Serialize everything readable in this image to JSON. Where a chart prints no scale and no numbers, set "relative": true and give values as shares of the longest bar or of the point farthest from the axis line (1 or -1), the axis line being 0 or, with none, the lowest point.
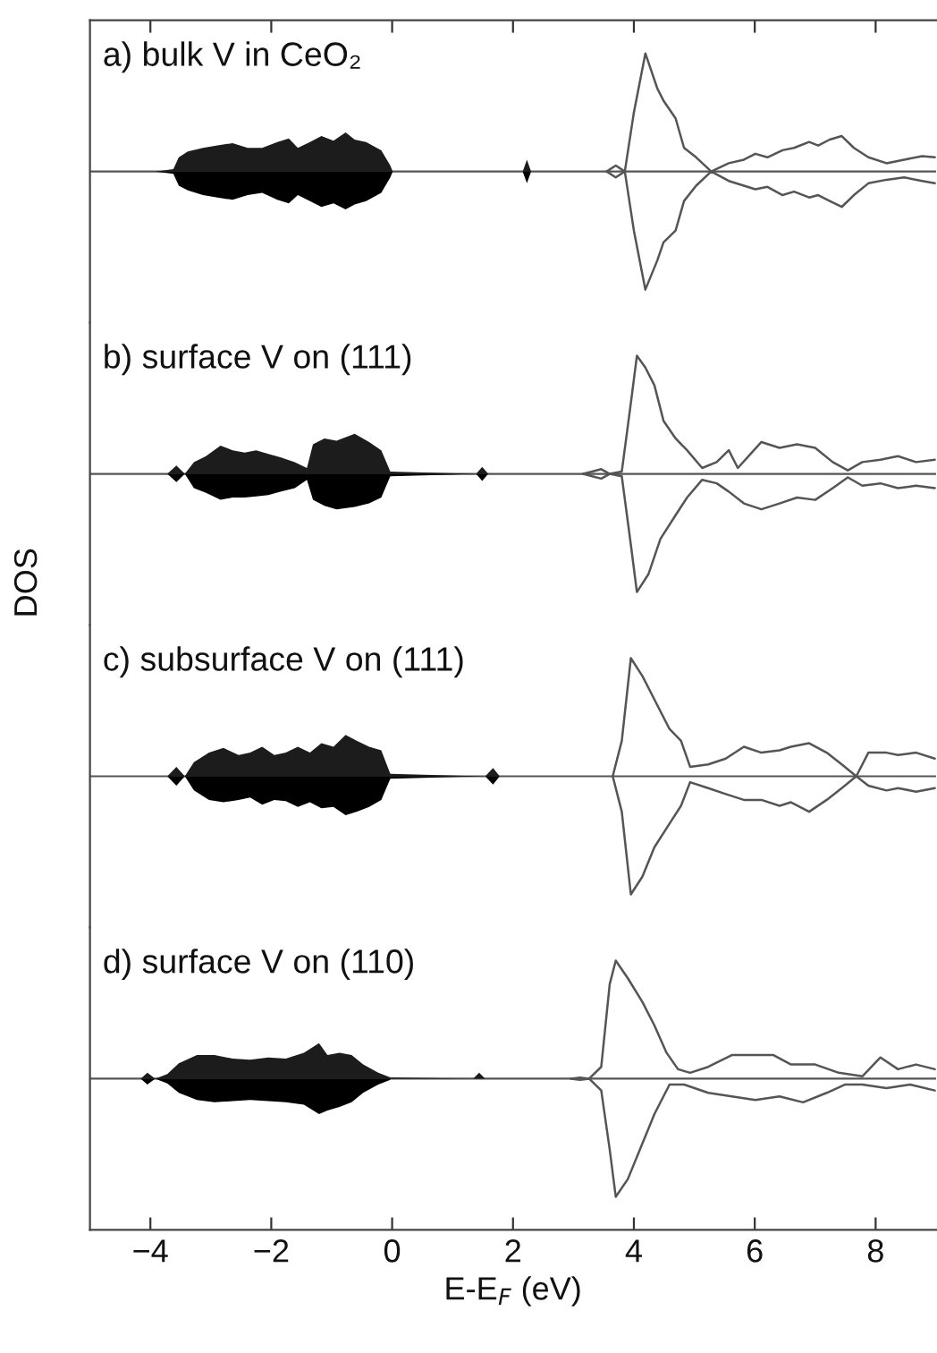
{
  "chart_data": [
    {
      "type": "line",
      "title": "a) bulk V in CeO₂",
      "relative": true,
      "xlim": [
        -5,
        9
      ],
      "tick_labels": false,
      "xticks": [
        {
          "value": -4,
          "label": null
        },
        {
          "value": -2,
          "label": null
        },
        {
          "value": 0,
          "label": null
        },
        {
          "value": 2,
          "label": null
        },
        {
          "value": 4,
          "label": null
        },
        {
          "value": 6,
          "label": null
        },
        {
          "value": 8,
          "label": null
        }
      ],
      "series": [
        {
          "type": "area",
          "color": "#1c1c1c",
          "x": [
            -3.92,
            -3.62,
            -3.53,
            -3.38,
            -3.13,
            -2.89,
            -2.64,
            -2.39,
            -2.15,
            -1.9,
            -1.71,
            -1.56,
            -1.36,
            -1.17,
            -0.97,
            -0.77,
            -0.62,
            -0.43,
            -0.18,
            -0.03,
            0.01,
            2.16,
            2.23,
            2.3
          ],
          "values": [
            0,
            0.02,
            0.12,
            0.17,
            0.2,
            0.22,
            0.24,
            0.2,
            0.2,
            0.25,
            0.28,
            0.2,
            0.25,
            0.3,
            0.26,
            0.33,
            0.27,
            0.25,
            0.18,
            0.05,
            0,
            0,
            0.1,
            0
          ]
        },
        {
          "type": "area",
          "color": "#000000",
          "x": [
            -3.92,
            -3.62,
            -3.53,
            -3.38,
            -3.13,
            -2.89,
            -2.64,
            -2.39,
            -2.15,
            -1.9,
            -1.71,
            -1.56,
            -1.36,
            -1.17,
            -0.97,
            -0.77,
            -0.62,
            -0.43,
            -0.18,
            -0.03,
            0.01,
            2.16,
            2.23,
            2.3
          ],
          "values": [
            0,
            -0.02,
            -0.12,
            -0.16,
            -0.2,
            -0.22,
            -0.24,
            -0.2,
            -0.18,
            -0.24,
            -0.27,
            -0.2,
            -0.25,
            -0.3,
            -0.27,
            -0.32,
            -0.28,
            -0.25,
            -0.18,
            -0.05,
            0,
            0,
            -0.1,
            0
          ]
        },
        {
          "color": "#555555",
          "x": [
            3.55,
            3.7,
            3.85,
            4.0,
            4.19,
            4.39,
            4.49,
            4.69,
            4.83,
            5.03,
            5.28,
            5.57,
            5.82,
            6.01,
            6.21,
            6.46,
            6.65,
            6.9,
            7.05,
            7.24,
            7.44,
            7.64,
            7.88,
            8.18,
            8.47,
            8.77,
            8.98
          ],
          "values": [
            0,
            0.05,
            0,
            0.5,
            1.0,
            0.7,
            0.6,
            0.45,
            0.2,
            0.12,
            0,
            0.07,
            0.1,
            0.15,
            0.12,
            0.18,
            0.2,
            0.25,
            0.22,
            0.27,
            0.3,
            0.2,
            0.12,
            0.07,
            0.1,
            0.13,
            0.12
          ]
        },
        {
          "color": "#555555",
          "x": [
            3.55,
            3.7,
            3.85,
            4.0,
            4.19,
            4.39,
            4.49,
            4.69,
            4.83,
            5.03,
            5.28,
            5.57,
            5.82,
            6.01,
            6.21,
            6.46,
            6.65,
            6.9,
            7.05,
            7.24,
            7.44,
            7.64,
            7.88,
            8.18,
            8.47,
            8.77,
            8.98
          ],
          "values": [
            0,
            -0.05,
            0,
            -0.5,
            -1.0,
            -0.75,
            -0.6,
            -0.5,
            -0.25,
            -0.12,
            0,
            -0.08,
            -0.12,
            -0.15,
            -0.13,
            -0.2,
            -0.17,
            -0.22,
            -0.2,
            -0.25,
            -0.3,
            -0.2,
            -0.1,
            -0.07,
            -0.05,
            -0.08,
            -0.1
          ]
        }
      ]
    },
    {
      "type": "line",
      "title": "b) surface V on (111)",
      "ylabel": "DOS",
      "relative": true,
      "xlim": [
        -5,
        9
      ],
      "tick_labels": false,
      "series": [
        {
          "type": "area",
          "color": "#1c1c1c",
          "x": [
            -3.72,
            -3.57,
            -3.43,
            -3.28,
            -3.08,
            -2.84,
            -2.64,
            -2.44,
            -2.25,
            -2.05,
            -1.85,
            -1.61,
            -1.41,
            -1.31,
            -1.12,
            -0.92,
            -0.62,
            -0.38,
            -0.18,
            -0.03,
            1.39,
            1.49,
            1.59
          ],
          "values": [
            0,
            0.07,
            0,
            0.1,
            0.15,
            0.24,
            0.2,
            0.18,
            0.2,
            0.17,
            0.14,
            0.1,
            0.05,
            0.25,
            0.3,
            0.28,
            0.34,
            0.27,
            0.2,
            0.02,
            0,
            0.06,
            0
          ]
        },
        {
          "type": "area",
          "color": "#000000",
          "x": [
            -3.72,
            -3.57,
            -3.43,
            -3.28,
            -3.08,
            -2.84,
            -2.64,
            -2.44,
            -2.25,
            -2.05,
            -1.85,
            -1.61,
            -1.41,
            -1.31,
            -1.12,
            -0.92,
            -0.62,
            -0.38,
            -0.18,
            -0.03,
            1.39,
            1.49,
            1.59
          ],
          "values": [
            0,
            -0.07,
            0,
            -0.12,
            -0.16,
            -0.22,
            -0.2,
            -0.2,
            -0.19,
            -0.18,
            -0.15,
            -0.12,
            -0.05,
            -0.22,
            -0.27,
            -0.3,
            -0.28,
            -0.25,
            -0.2,
            -0.02,
            0,
            -0.06,
            0
          ]
        },
        {
          "color": "#555555",
          "x": [
            3.16,
            3.31,
            3.46,
            3.6,
            3.8,
            3.95,
            4.05,
            4.19,
            4.34,
            4.49,
            4.69,
            4.88,
            5.13,
            5.37,
            5.57,
            5.72,
            6.11,
            6.41,
            6.7,
            7.0,
            7.29,
            7.54,
            7.78,
            8.08,
            8.37,
            8.67,
            8.98
          ],
          "values": [
            0,
            0.02,
            0.04,
            0,
            0.02,
            0.6,
            1.0,
            0.9,
            0.75,
            0.45,
            0.3,
            0.2,
            0.05,
            0.1,
            0.2,
            0.05,
            0.27,
            0.22,
            0.25,
            0.22,
            0.1,
            0.03,
            0.1,
            0.12,
            0.15,
            0.1,
            0.12
          ]
        },
        {
          "color": "#555555",
          "x": [
            3.16,
            3.31,
            3.46,
            3.6,
            3.8,
            3.95,
            4.05,
            4.24,
            4.44,
            4.69,
            4.88,
            5.13,
            5.37,
            5.57,
            5.82,
            6.11,
            6.41,
            6.7,
            7.0,
            7.29,
            7.54,
            7.78,
            8.08,
            8.37,
            8.67,
            8.98
          ],
          "values": [
            0,
            -0.02,
            -0.04,
            0,
            -0.02,
            -0.6,
            -1.0,
            -0.85,
            -0.55,
            -0.35,
            -0.2,
            -0.05,
            -0.08,
            -0.15,
            -0.25,
            -0.3,
            -0.25,
            -0.2,
            -0.22,
            -0.12,
            -0.03,
            -0.1,
            -0.08,
            -0.12,
            -0.1,
            -0.12
          ]
        }
      ]
    },
    {
      "type": "line",
      "title": "c) subsurface V on (111)",
      "relative": true,
      "xlim": [
        -5,
        9
      ],
      "tick_labels": false,
      "series": [
        {
          "type": "area",
          "color": "#1c1c1c",
          "x": [
            -3.72,
            -3.57,
            -3.43,
            -3.28,
            -3.03,
            -2.79,
            -2.54,
            -2.35,
            -2.15,
            -1.95,
            -1.76,
            -1.56,
            -1.36,
            -1.17,
            -0.97,
            -0.77,
            -0.58,
            -0.38,
            -0.18,
            -0.03,
            1.54,
            1.67,
            1.78
          ],
          "values": [
            0,
            0.08,
            0,
            0.12,
            0.2,
            0.24,
            0.18,
            0.2,
            0.25,
            0.18,
            0.2,
            0.25,
            0.2,
            0.28,
            0.25,
            0.35,
            0.3,
            0.25,
            0.22,
            0.02,
            0,
            0.07,
            0
          ]
        },
        {
          "type": "area",
          "color": "#000000",
          "x": [
            -3.72,
            -3.57,
            -3.43,
            -3.28,
            -3.03,
            -2.79,
            -2.54,
            -2.35,
            -2.15,
            -1.95,
            -1.76,
            -1.56,
            -1.36,
            -1.17,
            -0.97,
            -0.77,
            -0.58,
            -0.38,
            -0.18,
            -0.03,
            1.54,
            1.67,
            1.78
          ],
          "values": [
            0,
            -0.08,
            0,
            -0.12,
            -0.2,
            -0.22,
            -0.2,
            -0.18,
            -0.24,
            -0.2,
            -0.21,
            -0.26,
            -0.22,
            -0.27,
            -0.26,
            -0.33,
            -0.3,
            -0.26,
            -0.2,
            -0.02,
            0,
            -0.07,
            0
          ]
        },
        {
          "color": "#555555",
          "x": [
            3.65,
            3.8,
            3.95,
            4.14,
            4.34,
            4.59,
            4.78,
            4.93,
            5.23,
            5.52,
            5.82,
            6.11,
            6.41,
            6.6,
            6.9,
            7.19,
            7.44,
            7.68,
            7.88,
            8.18,
            8.37,
            8.67,
            8.98
          ],
          "values": [
            0,
            0.3,
            1.0,
            0.85,
            0.65,
            0.4,
            0.3,
            0.08,
            0.1,
            0.15,
            0.25,
            0.2,
            0.22,
            0.25,
            0.28,
            0.2,
            0.1,
            0,
            0.2,
            0.2,
            0.18,
            0.2,
            0.15
          ]
        },
        {
          "color": "#555555",
          "x": [
            3.65,
            3.8,
            3.95,
            4.14,
            4.34,
            4.59,
            4.78,
            4.93,
            5.23,
            5.52,
            5.82,
            6.11,
            6.41,
            6.6,
            6.9,
            7.19,
            7.44,
            7.68,
            7.88,
            8.18,
            8.37,
            8.67,
            8.98
          ],
          "values": [
            0,
            -0.3,
            -1.0,
            -0.85,
            -0.6,
            -0.4,
            -0.25,
            -0.05,
            -0.1,
            -0.15,
            -0.2,
            -0.2,
            -0.25,
            -0.22,
            -0.3,
            -0.2,
            -0.1,
            0,
            -0.08,
            -0.12,
            -0.1,
            -0.13,
            -0.1
          ]
        }
      ]
    },
    {
      "type": "line",
      "title": "d) surface V on (110)",
      "xlabel": "E-E$_{F}$ (eV)",
      "relative": true,
      "xlim": [
        -5,
        9
      ],
      "tick_labels": "x",
      "xticks": [
        {
          "value": -4,
          "label": "−4"
        },
        {
          "value": -2,
          "label": "−2"
        },
        0,
        2,
        4,
        6,
        8
      ],
      "series": [
        {
          "type": "area",
          "color": "#1c1c1c",
          "x": [
            -4.16,
            -4.05,
            -3.92,
            -3.72,
            -3.53,
            -3.23,
            -2.94,
            -2.64,
            -2.35,
            -2.05,
            -1.76,
            -1.46,
            -1.21,
            -1.07,
            -0.87,
            -0.67,
            -0.48,
            -0.23,
            -0.03,
            1.34,
            1.44,
            1.54
          ],
          "values": [
            0,
            0.05,
            0,
            0.04,
            0.13,
            0.2,
            0.2,
            0.17,
            0.16,
            0.18,
            0.17,
            0.22,
            0.3,
            0.2,
            0.22,
            0.2,
            0.12,
            0.05,
            0.01,
            0,
            0.05,
            0
          ]
        },
        {
          "type": "area",
          "color": "#000000",
          "x": [
            -4.16,
            -4.05,
            -3.92,
            -3.72,
            -3.53,
            -3.23,
            -2.94,
            -2.64,
            -2.35,
            -2.05,
            -1.76,
            -1.46,
            -1.21,
            -1.07,
            -0.87,
            -0.67,
            -0.48,
            -0.23,
            -0.03
          ],
          "values": [
            0,
            -0.05,
            0,
            -0.04,
            -0.12,
            -0.18,
            -0.2,
            -0.19,
            -0.18,
            -0.19,
            -0.2,
            -0.22,
            -0.3,
            -0.27,
            -0.24,
            -0.2,
            -0.12,
            -0.05,
            -0.01
          ]
        },
        {
          "color": "#555555",
          "x": [
            2.96,
            3.11,
            3.26,
            3.46,
            3.6,
            3.7,
            3.9,
            4.14,
            4.34,
            4.54,
            4.73,
            4.93,
            5.23,
            5.62,
            5.91,
            6.31,
            6.6,
            7.0,
            7.39,
            7.78,
            8.08,
            8.37,
            8.67,
            8.98
          ],
          "values": [
            0,
            0.01,
            0,
            0.1,
            0.8,
            1.0,
            0.85,
            0.65,
            0.45,
            0.22,
            0.08,
            0.05,
            0.1,
            0.2,
            0.2,
            0.2,
            0.12,
            0.12,
            0.05,
            0.02,
            0.18,
            0.08,
            0.12,
            0.08
          ]
        },
        {
          "color": "#555555",
          "x": [
            2.96,
            3.11,
            3.26,
            3.46,
            3.6,
            3.7,
            3.9,
            4.14,
            4.34,
            4.59,
            4.83,
            5.23,
            5.62,
            6.01,
            6.41,
            6.8,
            7.19,
            7.49,
            7.78,
            8.18,
            8.57,
            8.98
          ],
          "values": [
            0,
            -0.01,
            0,
            -0.1,
            -0.6,
            -1.0,
            -0.85,
            -0.55,
            -0.3,
            -0.05,
            -0.05,
            -0.12,
            -0.15,
            -0.18,
            -0.15,
            -0.2,
            -0.12,
            -0.05,
            -0.05,
            -0.08,
            -0.05,
            -0.1
          ]
        }
      ]
    }
  ]
}
